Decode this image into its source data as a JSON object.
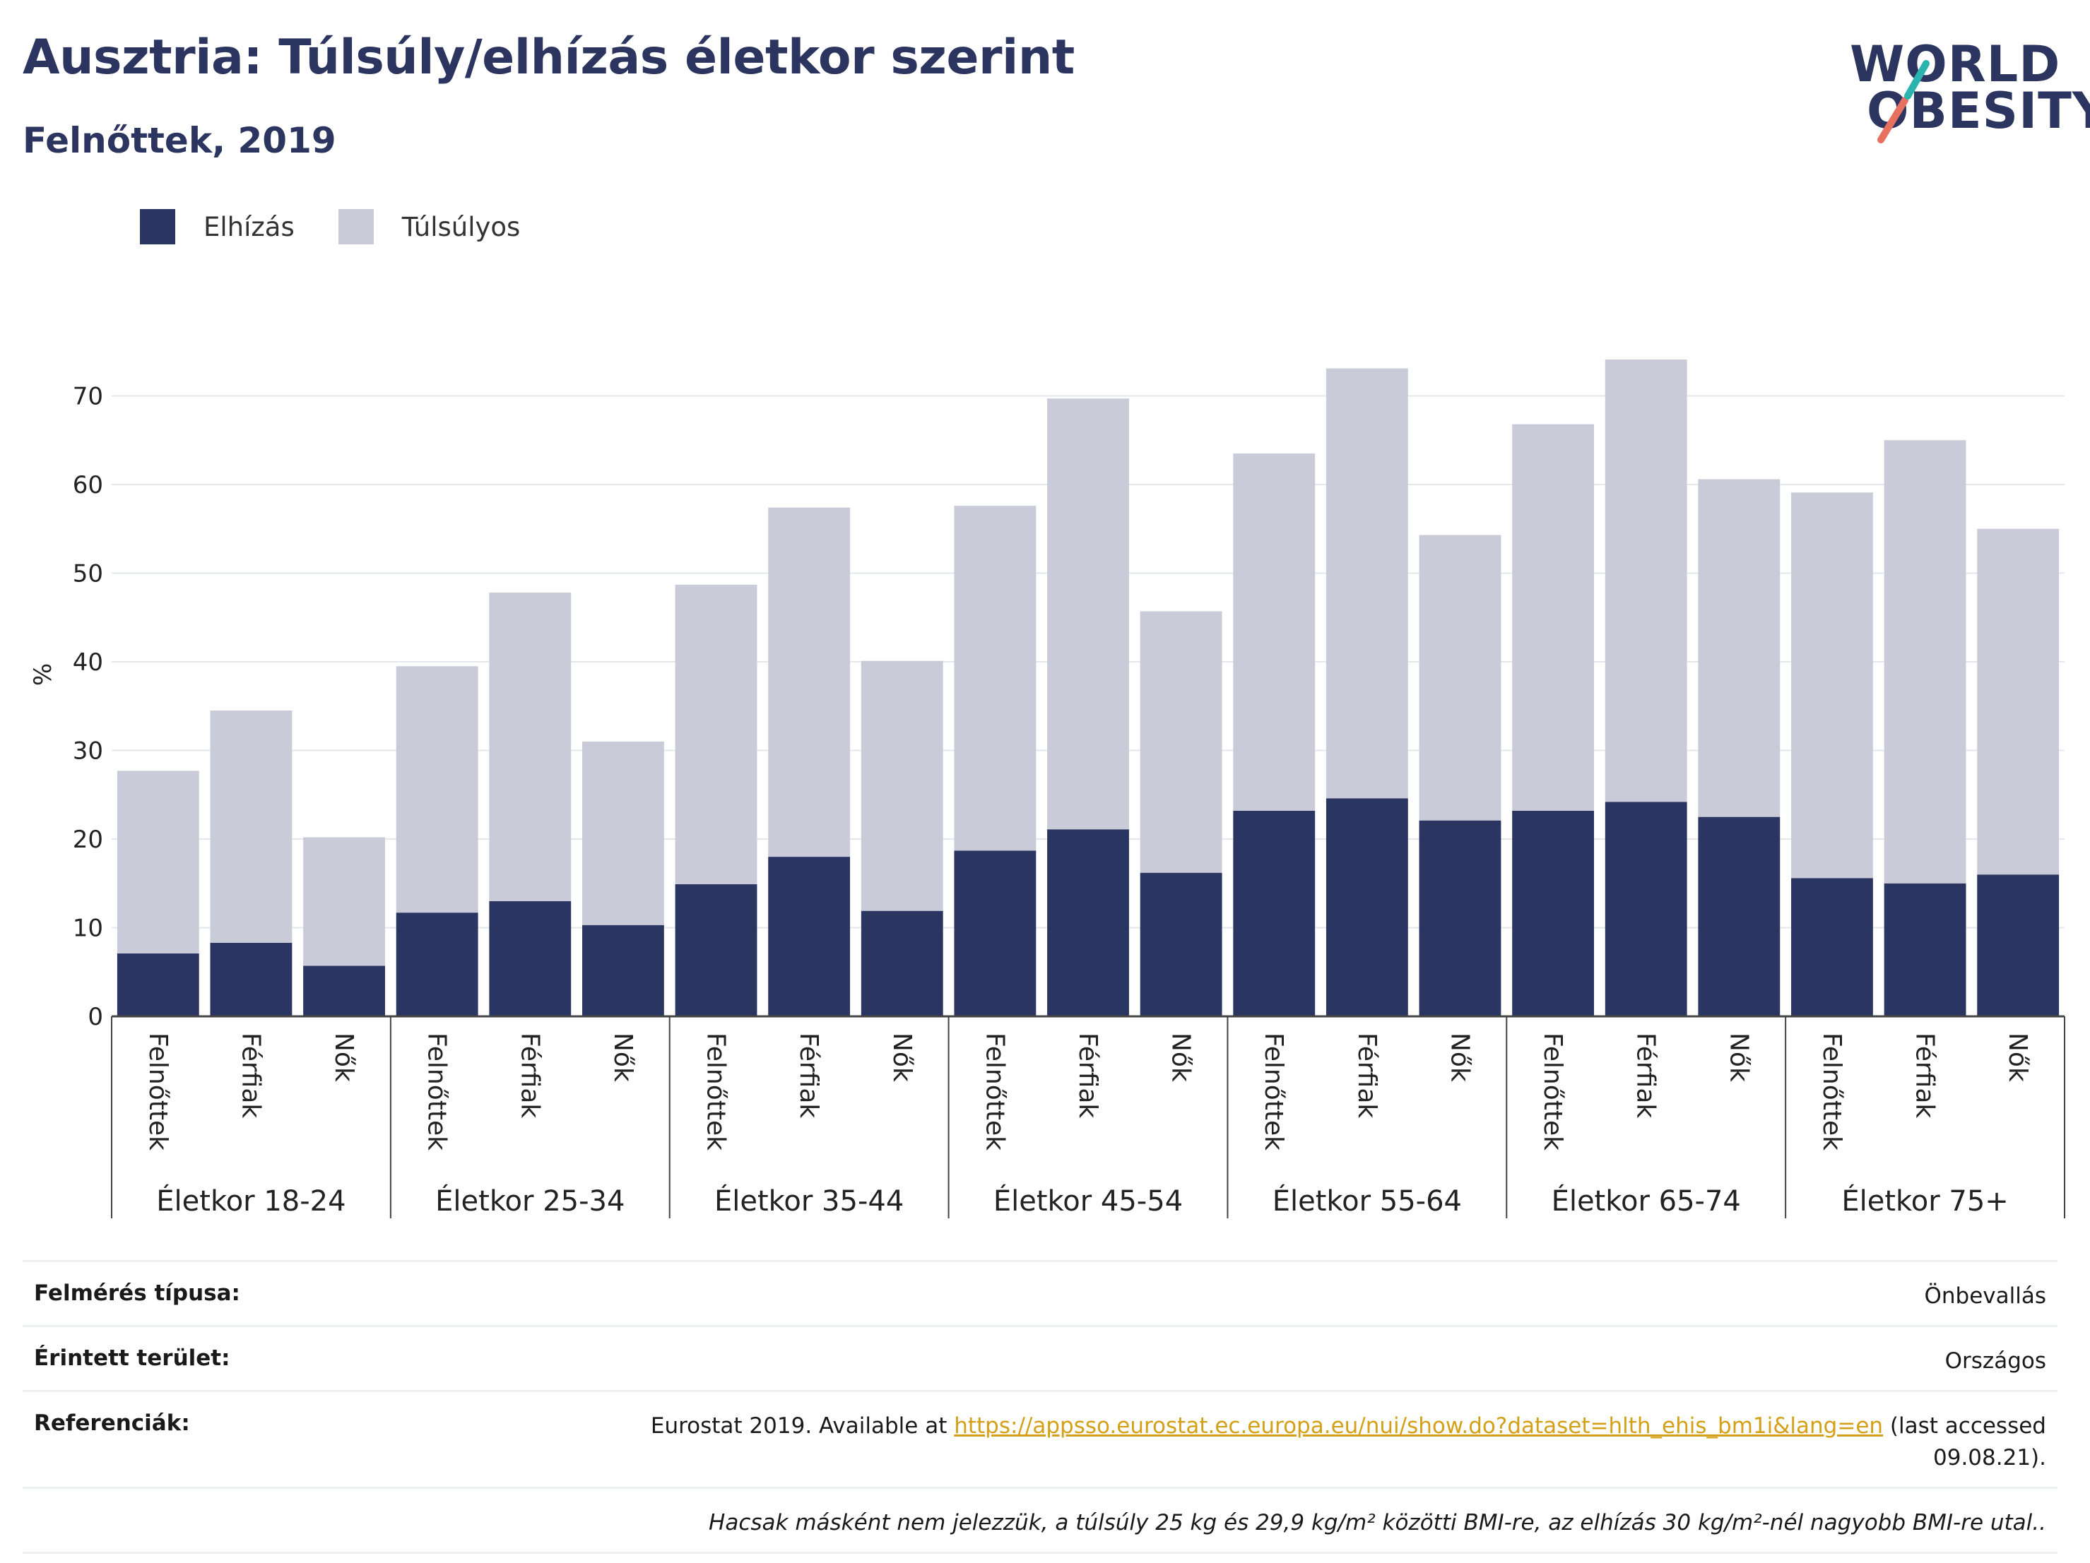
{
  "header": {
    "title": "Ausztria: Túlsúly/elhízás életkor szerint",
    "subtitle": "Felnőttek, 2019"
  },
  "logo": {
    "line1": "WORLD",
    "line2": "OBESITY"
  },
  "colors": {
    "obesity": "#2b3561",
    "overweight": "#c9cbd8",
    "title": "#2c3560",
    "link": "#d4a017"
  },
  "legend": [
    {
      "label": "Elhízás",
      "color": "#2b3561"
    },
    {
      "label": "Túlsúlyos",
      "color": "#c9cbd8"
    }
  ],
  "chart_data": {
    "type": "bar",
    "stacked": true,
    "ylabel": "%",
    "ylim": [
      0,
      80
    ],
    "yticks": [
      0,
      10,
      20,
      30,
      40,
      50,
      60,
      70
    ],
    "grid": true,
    "legend_position": "top-left",
    "groups": [
      "Életkor 18-24",
      "Életkor 25-34",
      "Életkor 35-44",
      "Életkor 45-54",
      "Életkor 55-64",
      "Életkor 65-74",
      "Életkor 75+"
    ],
    "categories": [
      "Felnőttek",
      "Férfiak",
      "Nők"
    ],
    "series": [
      {
        "name": "Elhízás",
        "values": [
          [
            7.1,
            8.3,
            5.7
          ],
          [
            11.7,
            13.0,
            10.3
          ],
          [
            14.9,
            18.0,
            11.9
          ],
          [
            18.7,
            21.1,
            16.2
          ],
          [
            23.2,
            24.6,
            22.1
          ],
          [
            23.2,
            24.2,
            22.5
          ],
          [
            15.6,
            15.0,
            16.0
          ]
        ]
      },
      {
        "name": "Túlsúlyos",
        "values": [
          [
            20.6,
            26.2,
            14.5
          ],
          [
            27.8,
            34.8,
            20.7
          ],
          [
            33.8,
            39.4,
            28.2
          ],
          [
            38.9,
            48.6,
            29.5
          ],
          [
            40.3,
            48.5,
            32.2
          ],
          [
            43.6,
            49.9,
            38.1
          ],
          [
            43.5,
            50.0,
            39.0
          ]
        ]
      }
    ]
  },
  "info": [
    {
      "key": "Felmérés típusa:",
      "value": "Önbevallás"
    },
    {
      "key": "Érintett terület:",
      "value": "Országos"
    },
    {
      "key": "Referenciák:",
      "value_prefix": "Eurostat 2019. Available at ",
      "link": "https://appsso.eurostat.ec.europa.eu/nui/show.do?dataset=hlth_ehis_bm1i&lang=en",
      "value_suffix": " (last accessed 09.08.21)."
    }
  ],
  "note": "Hacsak másként nem jelezzük, a túlsúly 25 kg és 29,9 kg/m² közötti BMI-re, az elhízás 30 kg/m²-nél nagyobb BMI-re utal.."
}
